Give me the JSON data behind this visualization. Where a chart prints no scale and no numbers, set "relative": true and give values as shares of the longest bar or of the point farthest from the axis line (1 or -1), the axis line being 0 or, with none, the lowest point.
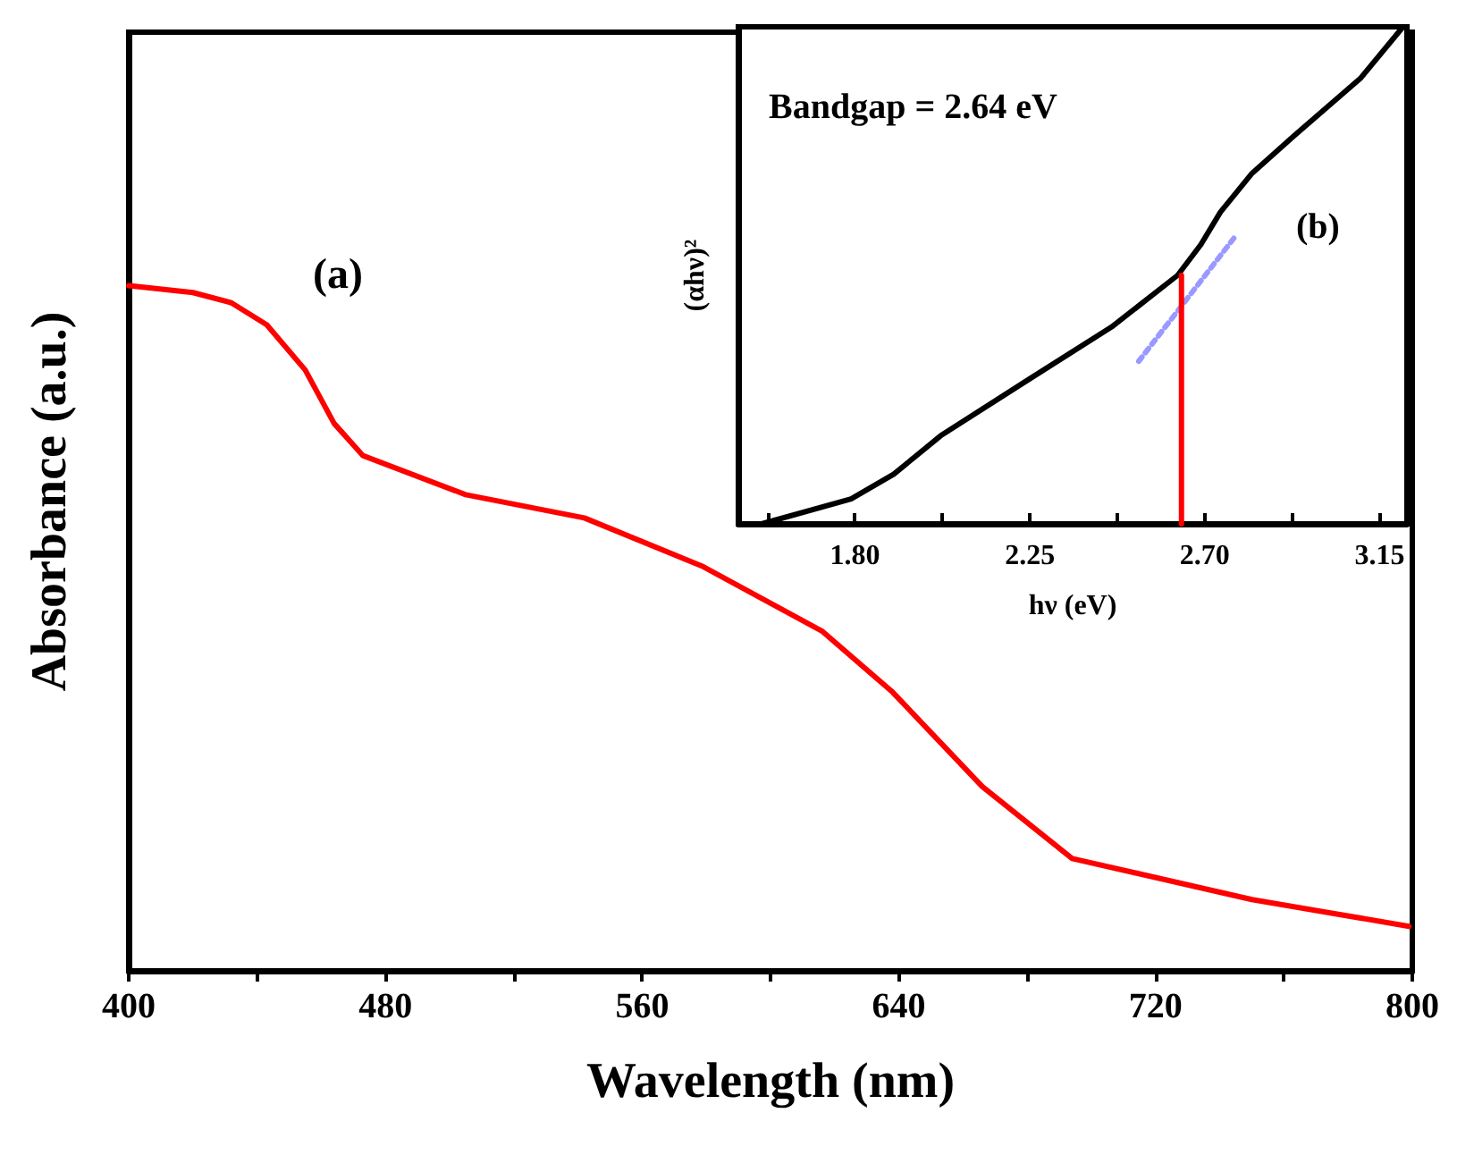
{
  "chart_data": [
    {
      "type": "line",
      "xlabel": "Wavelength (nm)",
      "ylabel": "Absorbance (a.u.)",
      "annotations": [
        "(a)"
      ],
      "relative": true,
      "x": [
        400,
        420,
        432,
        443,
        455,
        464,
        473,
        505,
        542,
        579,
        616,
        638,
        666,
        694,
        750,
        799
      ],
      "series": [
        {
          "color": "#ff0000",
          "values": [
            1.0,
            0.99,
            0.975,
            0.943,
            0.877,
            0.799,
            0.752,
            0.695,
            0.661,
            0.59,
            0.496,
            0.407,
            0.269,
            0.164,
            0.104,
            0.065
          ]
        }
      ],
      "xlim": [
        400,
        800
      ],
      "xticks": [
        400,
        {
          "value": 440,
          "label": null
        },
        480,
        {
          "value": 520,
          "label": null
        },
        560,
        {
          "value": 600,
          "label": null
        },
        640,
        {
          "value": 680,
          "label": null
        },
        720,
        {
          "value": 760,
          "label": null
        },
        800
      ],
      "grid": false,
      "marker": "none",
      "line_style": "solid"
    },
    {
      "type": "line",
      "xlabel": "hν (eV)",
      "ylabel": "(αhν)²",
      "annotations": [
        "Bandgap = 2.64 eV",
        "(b)"
      ],
      "relative": true,
      "series": [
        {
          "color": "#000000",
          "x": [
            1.56,
            1.79,
            1.9,
            2.02,
            2.25,
            2.46,
            2.63,
            2.69,
            2.74,
            2.82,
            2.93,
            3.1,
            3.21
          ],
          "values": [
            0.0,
            0.05,
            0.1,
            0.177,
            0.292,
            0.396,
            0.5,
            0.562,
            0.627,
            0.704,
            0.781,
            0.896,
            1.0
          ]
        },
        {
          "color": "#9999ff",
          "x": [
            2.53,
            2.78
          ],
          "values": [
            0.327,
            0.58
          ],
          "line_style": "dotted"
        },
        {
          "color": "#ff0000",
          "x": [
            2.64,
            2.64
          ],
          "values": [
            0,
            0.5
          ]
        }
      ],
      "xlim": [
        1.5,
        3.22
      ],
      "xticks": [
        {
          "value": 1.575,
          "label": null
        },
        {
          "value": 1.8,
          "label": "1.80"
        },
        {
          "value": 2.025,
          "label": null
        },
        {
          "value": 2.25,
          "label": "2.25"
        },
        {
          "value": 2.475,
          "label": null
        },
        {
          "value": 2.7,
          "label": "2.70"
        },
        {
          "value": 2.925,
          "label": null
        },
        {
          "value": 3.15,
          "label": "3.15"
        }
      ],
      "grid": false,
      "marker": "none",
      "line_style": "solid"
    }
  ]
}
